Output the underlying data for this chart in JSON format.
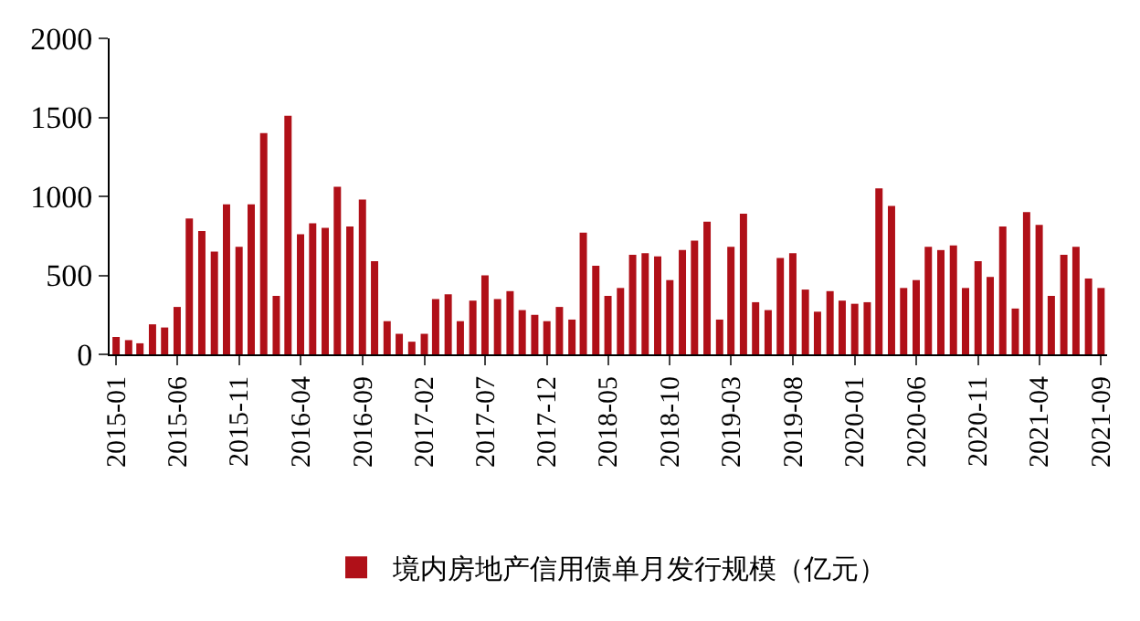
{
  "chart_data": {
    "type": "bar",
    "x": [
      "2015-01",
      "2015-02",
      "2015-03",
      "2015-04",
      "2015-05",
      "2015-06",
      "2015-07",
      "2015-08",
      "2015-09",
      "2015-10",
      "2015-11",
      "2015-12",
      "2016-01",
      "2016-02",
      "2016-03",
      "2016-04",
      "2016-05",
      "2016-06",
      "2016-07",
      "2016-08",
      "2016-09",
      "2016-10",
      "2016-11",
      "2016-12",
      "2017-01",
      "2017-02",
      "2017-03",
      "2017-04",
      "2017-05",
      "2017-06",
      "2017-07",
      "2017-08",
      "2017-09",
      "2017-10",
      "2017-11",
      "2017-12",
      "2018-01",
      "2018-02",
      "2018-03",
      "2018-04",
      "2018-05",
      "2018-06",
      "2018-07",
      "2018-08",
      "2018-09",
      "2018-10",
      "2018-11",
      "2018-12",
      "2019-01",
      "2019-02",
      "2019-03",
      "2019-04",
      "2019-05",
      "2019-06",
      "2019-07",
      "2019-08",
      "2019-09",
      "2019-10",
      "2019-11",
      "2019-12",
      "2020-01",
      "2020-02",
      "2020-03",
      "2020-04",
      "2020-05",
      "2020-06",
      "2020-07",
      "2020-08",
      "2020-09",
      "2020-10",
      "2020-11",
      "2020-12",
      "2021-01",
      "2021-02",
      "2021-03",
      "2021-04",
      "2021-05",
      "2021-06",
      "2021-07",
      "2021-08",
      "2021-09"
    ],
    "series": [
      {
        "name": "境内房地产信用债单月发行规模（亿元）",
        "color": "#b01018",
        "values": [
          110,
          90,
          70,
          190,
          170,
          300,
          860,
          780,
          650,
          950,
          680,
          950,
          1400,
          370,
          1510,
          760,
          830,
          800,
          1060,
          810,
          980,
          590,
          210,
          130,
          80,
          130,
          350,
          380,
          210,
          340,
          500,
          350,
          400,
          280,
          250,
          210,
          300,
          220,
          770,
          560,
          370,
          420,
          630,
          640,
          620,
          470,
          660,
          720,
          840,
          220,
          680,
          890,
          330,
          280,
          610,
          640,
          410,
          270,
          400,
          340,
          320,
          330,
          1050,
          940,
          420,
          470,
          680,
          660,
          690,
          420,
          590,
          490,
          810,
          290,
          900,
          820,
          370,
          630,
          680,
          480,
          420
        ]
      }
    ],
    "xlim": [
      "2014-12-16",
      "2021-09-16"
    ],
    "xticks": [
      "2015-01",
      "2015-06",
      "2015-11",
      "2016-04",
      "2016-09",
      "2017-02",
      "2017-07",
      "2017-12",
      "2018-05",
      "2018-10",
      "2019-03",
      "2019-08",
      "2020-01",
      "2020-06",
      "2020-11",
      "2021-04",
      "2021-09"
    ],
    "ylim": [
      0,
      2000
    ],
    "yticks": [
      0,
      500,
      1000,
      1500,
      2000
    ],
    "legend": "bottom"
  }
}
